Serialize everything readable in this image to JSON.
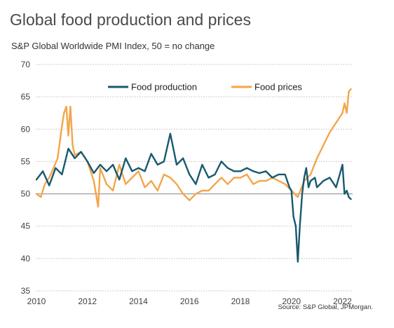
{
  "title": "Global food production and prices",
  "subtitle": "S&P Global Worldwide PMI Index, 50 =  no change",
  "source": "Source: S&P Global, JPMorgan.",
  "chart_data": {
    "type": "line",
    "title": "Global food production and prices",
    "ylabel": "S&P Global Worldwide PMI Index, 50 =  no change",
    "xlabel": "",
    "ylim": [
      35,
      70
    ],
    "xlim": [
      2010.0,
      2022.4
    ],
    "y_ticks": [
      "35",
      "40",
      "45",
      "50",
      "55",
      "60",
      "65",
      "70"
    ],
    "x_ticks": [
      "2010",
      "2012",
      "2014",
      "2016",
      "2018",
      "2020",
      "2022"
    ],
    "grid": "horizontal dotted",
    "reference_line": 50,
    "legend": "top-center",
    "series": [
      {
        "name": "Food production",
        "color": "#17596e",
        "x": [
          2010.0,
          2010.25,
          2010.5,
          2010.75,
          2011.0,
          2011.25,
          2011.5,
          2011.75,
          2012.0,
          2012.25,
          2012.5,
          2012.75,
          2013.0,
          2013.25,
          2013.5,
          2013.75,
          2014.0,
          2014.25,
          2014.5,
          2014.75,
          2015.0,
          2015.25,
          2015.5,
          2015.75,
          2016.0,
          2016.25,
          2016.5,
          2016.75,
          2017.0,
          2017.25,
          2017.5,
          2017.75,
          2018.0,
          2018.25,
          2018.5,
          2018.75,
          2019.0,
          2019.25,
          2019.5,
          2019.75,
          2019.92,
          2020.0,
          2020.08,
          2020.17,
          2020.25,
          2020.33,
          2020.42,
          2020.5,
          2020.58,
          2020.67,
          2020.75,
          2020.92,
          2021.0,
          2021.25,
          2021.5,
          2021.75,
          2022.0,
          2022.08,
          2022.17,
          2022.25,
          2022.33
        ],
        "values": [
          52.2,
          53.5,
          51.3,
          54.0,
          53.0,
          57.0,
          55.5,
          56.5,
          55.0,
          53.2,
          54.5,
          53.5,
          54.5,
          52.2,
          55.5,
          53.5,
          54.0,
          53.5,
          56.2,
          54.5,
          55.0,
          59.3,
          54.5,
          55.5,
          53.0,
          51.5,
          54.5,
          52.5,
          53.0,
          55.0,
          54.0,
          53.5,
          53.5,
          54.0,
          53.5,
          53.2,
          53.5,
          52.5,
          53.0,
          53.0,
          51.0,
          50.5,
          46.5,
          45.0,
          39.5,
          45.0,
          50.0,
          52.5,
          54.0,
          51.0,
          52.0,
          52.5,
          51.0,
          52.0,
          52.5,
          51.0,
          54.5,
          50.0,
          50.5,
          49.5,
          49.2
        ]
      },
      {
        "name": "Food prices",
        "color": "#f4a54a",
        "x": [
          2010.0,
          2010.17,
          2010.33,
          2010.5,
          2010.67,
          2010.83,
          2011.0,
          2011.08,
          2011.17,
          2011.25,
          2011.33,
          2011.42,
          2011.5,
          2011.75,
          2012.0,
          2012.25,
          2012.42,
          2012.5,
          2012.75,
          2013.0,
          2013.25,
          2013.5,
          2013.75,
          2014.0,
          2014.25,
          2014.5,
          2014.75,
          2015.0,
          2015.25,
          2015.5,
          2015.75,
          2016.0,
          2016.25,
          2016.5,
          2016.75,
          2017.0,
          2017.25,
          2017.5,
          2017.75,
          2018.0,
          2018.25,
          2018.5,
          2018.75,
          2019.0,
          2019.25,
          2019.5,
          2019.75,
          2020.0,
          2020.25,
          2020.5,
          2020.75,
          2021.0,
          2021.25,
          2021.5,
          2021.75,
          2022.0,
          2022.08,
          2022.17,
          2022.25,
          2022.33
        ],
        "values": [
          50.0,
          49.5,
          51.5,
          52.5,
          54.0,
          55.5,
          60.5,
          62.5,
          63.5,
          59.0,
          63.5,
          57.5,
          56.0,
          56.5,
          55.0,
          52.0,
          48.0,
          54.0,
          51.5,
          50.5,
          54.5,
          51.5,
          52.5,
          53.5,
          51.0,
          52.0,
          50.5,
          53.0,
          52.5,
          51.5,
          50.0,
          49.0,
          50.0,
          50.5,
          50.5,
          51.5,
          52.5,
          51.5,
          52.5,
          52.5,
          53.0,
          51.5,
          52.0,
          52.0,
          52.5,
          52.0,
          51.5,
          50.5,
          49.5,
          52.0,
          53.0,
          55.5,
          57.5,
          59.5,
          61.0,
          62.5,
          64.0,
          62.5,
          65.8,
          66.2
        ]
      }
    ]
  }
}
